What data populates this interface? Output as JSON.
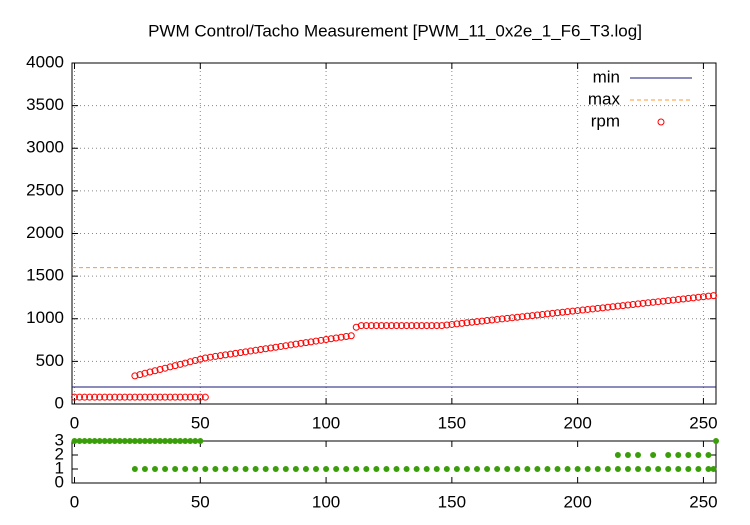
{
  "chart_data": [
    {
      "type": "scatter",
      "title": "PWM Control/Tacho Measurement [PWM_11_0x2e_1_F6_T3.log]",
      "xlim": [
        -1,
        255
      ],
      "xticks": [
        0,
        50,
        100,
        150,
        200,
        250
      ],
      "ylim": [
        0,
        4000
      ],
      "yticks": [
        0,
        500,
        1000,
        1500,
        2000,
        2500,
        3000,
        3500,
        4000
      ],
      "grid": true,
      "legend": "top right",
      "series": [
        {
          "name": "min",
          "style": "hline",
          "color": "#1a1a7a",
          "value": 200
        },
        {
          "name": "max",
          "style": "dashed-hline",
          "color": "#ff9a33",
          "value": 1600
        },
        {
          "name": "rpm",
          "style": "open-circles",
          "color": "#ff0000",
          "x": [
            0,
            2,
            4,
            6,
            8,
            10,
            12,
            14,
            16,
            18,
            20,
            22,
            24,
            26,
            28,
            30,
            32,
            34,
            36,
            38,
            40,
            42,
            44,
            46,
            48,
            50,
            52,
            24,
            26,
            28,
            30,
            32,
            34,
            36,
            38,
            40,
            42,
            44,
            46,
            48,
            50,
            52,
            54,
            56,
            58,
            60,
            62,
            64,
            66,
            68,
            70,
            72,
            74,
            76,
            78,
            80,
            82,
            84,
            86,
            88,
            90,
            92,
            94,
            96,
            98,
            100,
            102,
            104,
            106,
            108,
            110,
            112,
            114,
            116,
            118,
            120,
            122,
            124,
            126,
            128,
            130,
            132,
            134,
            136,
            138,
            140,
            142,
            144,
            146,
            148,
            150,
            152,
            154,
            156,
            158,
            160,
            162,
            164,
            166,
            168,
            170,
            172,
            174,
            176,
            178,
            180,
            182,
            184,
            186,
            188,
            190,
            192,
            194,
            196,
            198,
            200,
            202,
            204,
            206,
            208,
            210,
            212,
            214,
            216,
            218,
            220,
            222,
            224,
            226,
            228,
            230,
            232,
            234,
            236,
            238,
            240,
            242,
            244,
            246,
            248,
            250,
            252,
            254
          ],
          "values": [
            80,
            80,
            80,
            80,
            80,
            80,
            80,
            80,
            80,
            80,
            80,
            80,
            80,
            80,
            80,
            80,
            80,
            80,
            80,
            80,
            80,
            80,
            80,
            80,
            80,
            80,
            80,
            330,
            345,
            360,
            375,
            390,
            405,
            420,
            435,
            450,
            465,
            480,
            495,
            510,
            525,
            540,
            549,
            558,
            567,
            576,
            585,
            594,
            603,
            612,
            621,
            630,
            639,
            648,
            657,
            666,
            675,
            684,
            693,
            702,
            711,
            720,
            729,
            738,
            747,
            756,
            765,
            774,
            783,
            792,
            801,
            900,
            920,
            920,
            920,
            920,
            920,
            920,
            920,
            920,
            920,
            920,
            920,
            920,
            920,
            920,
            920,
            920,
            920,
            927,
            933,
            940,
            946,
            953,
            959,
            966,
            972,
            979,
            985,
            992,
            998,
            1005,
            1011,
            1018,
            1024,
            1031,
            1037,
            1044,
            1050,
            1057,
            1063,
            1070,
            1076,
            1083,
            1089,
            1096,
            1102,
            1109,
            1115,
            1122,
            1128,
            1135,
            1141,
            1148,
            1154,
            1161,
            1167,
            1174,
            1180,
            1187,
            1193,
            1200,
            1206,
            1213,
            1219,
            1226,
            1232,
            1239,
            1245,
            1252,
            1258,
            1265,
            1271
          ]
        }
      ]
    },
    {
      "type": "scatter",
      "xlim": [
        -1,
        255
      ],
      "xticks": [
        0,
        50,
        100,
        150,
        200,
        250
      ],
      "ylim": [
        0,
        3
      ],
      "yticks": [
        0,
        1,
        2,
        3
      ],
      "grid": false,
      "series": [
        {
          "style": "dots",
          "color": "#3a9e0a",
          "x": [
            0,
            2,
            4,
            6,
            8,
            10,
            12,
            14,
            16,
            18,
            20,
            22,
            24,
            26,
            28,
            30,
            32,
            34,
            36,
            38,
            40,
            42,
            44,
            46,
            48,
            50,
            24,
            28,
            32,
            36,
            40,
            44,
            48,
            52,
            56,
            60,
            64,
            68,
            72,
            76,
            80,
            84,
            88,
            92,
            96,
            100,
            104,
            108,
            112,
            116,
            120,
            124,
            128,
            132,
            136,
            140,
            144,
            148,
            152,
            156,
            160,
            164,
            168,
            172,
            176,
            180,
            184,
            188,
            192,
            196,
            200,
            204,
            208,
            212,
            216,
            220,
            224,
            228,
            232,
            236,
            240,
            244,
            248,
            252,
            254,
            216,
            220,
            224,
            230,
            236,
            240,
            244,
            248,
            252,
            255
          ],
          "values": [
            3,
            3,
            3,
            3,
            3,
            3,
            3,
            3,
            3,
            3,
            3,
            3,
            3,
            3,
            3,
            3,
            3,
            3,
            3,
            3,
            3,
            3,
            3,
            3,
            3,
            3,
            1,
            1,
            1,
            1,
            1,
            1,
            1,
            1,
            1,
            1,
            1,
            1,
            1,
            1,
            1,
            1,
            1,
            1,
            1,
            1,
            1,
            1,
            1,
            1,
            1,
            1,
            1,
            1,
            1,
            1,
            1,
            1,
            1,
            1,
            1,
            1,
            1,
            1,
            1,
            1,
            1,
            1,
            1,
            1,
            1,
            1,
            1,
            1,
            1,
            1,
            1,
            1,
            1,
            1,
            1,
            1,
            1,
            1,
            1,
            2,
            2,
            2,
            2,
            2,
            2,
            2,
            2,
            2,
            3
          ]
        }
      ]
    }
  ]
}
